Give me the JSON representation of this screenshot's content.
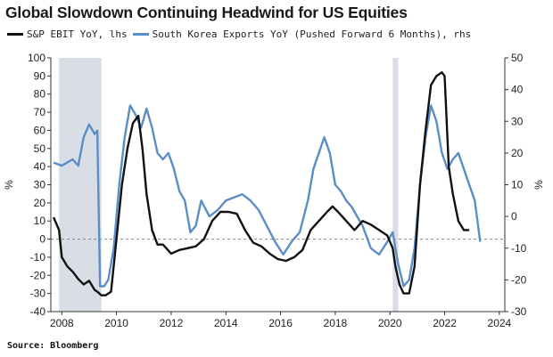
{
  "chart_data": {
    "type": "line",
    "title": "Global Slowdown Continuing Headwind for US Equities",
    "source": "Source: Bloomberg",
    "left_axis": {
      "label": "%",
      "range": [
        -40,
        100
      ],
      "ticks": [
        -40,
        -30,
        -20,
        -10,
        0,
        10,
        20,
        30,
        40,
        50,
        60,
        70,
        80,
        90,
        100
      ]
    },
    "right_axis": {
      "label": "%",
      "range": [
        -30,
        50
      ],
      "ticks": [
        -30,
        -20,
        -10,
        0,
        10,
        20,
        30,
        40,
        50
      ]
    },
    "x_axis": {
      "range": [
        2007.6,
        2024.2
      ],
      "ticks": [
        2008,
        2010,
        2012,
        2014,
        2016,
        2018,
        2020,
        2022,
        2024
      ]
    },
    "zero_line": "dashed",
    "grid": false,
    "legend_position": "top",
    "recession_shading": [
      [
        2007.9,
        2009.45
      ],
      [
        2020.1,
        2020.3
      ]
    ],
    "series": [
      {
        "name": "S&P EBIT YoY, lhs",
        "axis": "left",
        "color": "#111111",
        "x": [
          2007.7,
          2007.9,
          2008.0,
          2008.2,
          2008.4,
          2008.6,
          2008.8,
          2009.0,
          2009.2,
          2009.3,
          2009.45,
          2009.6,
          2009.8,
          2010.0,
          2010.2,
          2010.4,
          2010.6,
          2010.8,
          2010.95,
          2011.1,
          2011.3,
          2011.5,
          2011.7,
          2012.0,
          2012.3,
          2012.6,
          2012.9,
          2013.2,
          2013.5,
          2013.8,
          2014.1,
          2014.4,
          2014.7,
          2015.0,
          2015.3,
          2015.6,
          2015.9,
          2016.2,
          2016.5,
          2016.8,
          2017.1,
          2017.4,
          2017.7,
          2017.9,
          2018.1,
          2018.4,
          2018.7,
          2019.0,
          2019.3,
          2019.6,
          2019.9,
          2020.1,
          2020.2,
          2020.35,
          2020.5,
          2020.7,
          2020.9,
          2021.1,
          2021.3,
          2021.5,
          2021.7,
          2021.9,
          2022.0,
          2022.15,
          2022.3,
          2022.5,
          2022.7,
          2022.9
        ],
        "values": [
          12,
          5,
          -10,
          -15,
          -18,
          -22,
          -25,
          -23,
          -28,
          -29,
          -31,
          -31,
          -29,
          0,
          30,
          50,
          64,
          68,
          50,
          25,
          5,
          -3,
          -3,
          -8,
          -6,
          -5,
          -4,
          0,
          10,
          15,
          15,
          14,
          5,
          -2,
          -4,
          -8,
          -11,
          -12,
          -10,
          -6,
          5,
          10,
          15,
          18,
          15,
          10,
          5,
          10,
          8,
          5,
          2,
          -5,
          -15,
          -25,
          -30,
          -30,
          -15,
          30,
          60,
          85,
          90,
          92,
          90,
          40,
          25,
          10,
          5,
          5
        ]
      },
      {
        "name": "South Korea Exports YoY (Pushed Forward 6 Months), rhs",
        "axis": "right",
        "color": "#5b8ec6",
        "x": [
          2007.7,
          2008.0,
          2008.2,
          2008.4,
          2008.6,
          2008.8,
          2009.0,
          2009.2,
          2009.3,
          2009.4,
          2009.55,
          2009.7,
          2009.9,
          2010.1,
          2010.3,
          2010.5,
          2010.7,
          2010.9,
          2011.1,
          2011.3,
          2011.5,
          2011.7,
          2011.9,
          2012.1,
          2012.3,
          2012.5,
          2012.7,
          2012.9,
          2013.1,
          2013.4,
          2013.7,
          2014.0,
          2014.3,
          2014.6,
          2014.9,
          2015.2,
          2015.5,
          2015.8,
          2016.1,
          2016.4,
          2016.7,
          2017.0,
          2017.2,
          2017.4,
          2017.6,
          2017.8,
          2018.0,
          2018.2,
          2018.4,
          2018.6,
          2018.8,
          2019.0,
          2019.3,
          2019.6,
          2019.9,
          2020.1,
          2020.3,
          2020.5,
          2020.7,
          2020.9,
          2021.1,
          2021.3,
          2021.5,
          2021.7,
          2021.9,
          2022.1,
          2022.3,
          2022.5,
          2022.7,
          2022.9,
          2023.1,
          2023.3
        ],
        "values": [
          17,
          16,
          17,
          18,
          16,
          25,
          29,
          26,
          27,
          -22,
          -22,
          -20,
          -10,
          10,
          25,
          35,
          32,
          28,
          34,
          28,
          20,
          18,
          20,
          15,
          8,
          5,
          -5,
          -3,
          5,
          0,
          2,
          5,
          6,
          7,
          5,
          2,
          -3,
          -8,
          -12,
          -8,
          -5,
          5,
          15,
          20,
          25,
          20,
          10,
          8,
          5,
          3,
          0,
          -3,
          -10,
          -12,
          -8,
          -5,
          -15,
          -22,
          -20,
          -10,
          10,
          25,
          35,
          30,
          20,
          15,
          18,
          20,
          15,
          10,
          5,
          -8
        ]
      }
    ]
  }
}
